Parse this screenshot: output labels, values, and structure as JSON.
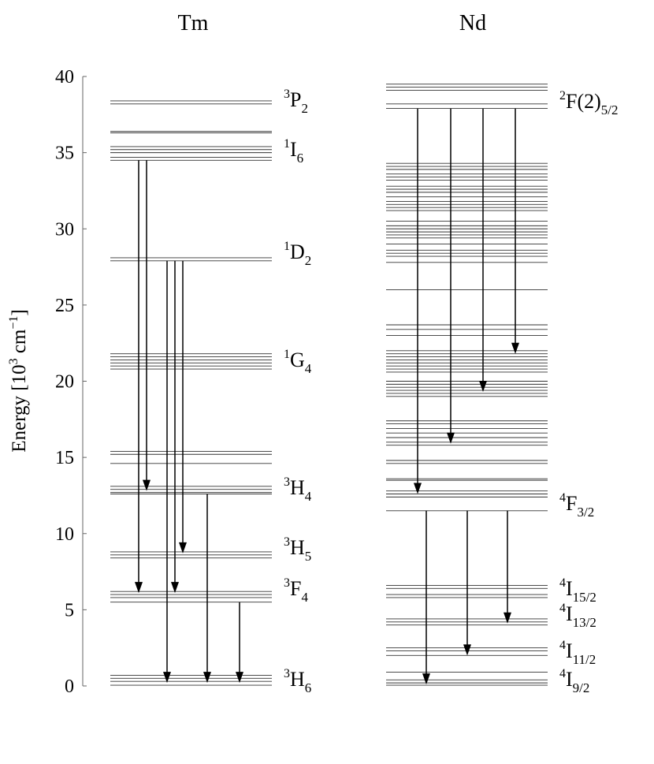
{
  "chart_data": {
    "type": "level-diagram",
    "ylabel": {
      "pre": "Energy [10",
      "sup1": "3",
      "mid": " cm",
      "sup2": "−1",
      "post": "]"
    },
    "ylim": [
      0,
      40
    ],
    "yticks": [
      0,
      5,
      10,
      15,
      20,
      25,
      30,
      35,
      40
    ],
    "color": "#333333",
    "panels": [
      {
        "title": "Tm",
        "levels": [
          38.4,
          38.2,
          36.4,
          36.3,
          35.4,
          35.2,
          35.0,
          34.7,
          34.5,
          28.1,
          27.9,
          21.8,
          21.6,
          21.4,
          21.2,
          21.0,
          20.8,
          15.4,
          15.2,
          14.6,
          13.1,
          12.9,
          12.7,
          12.6,
          8.8,
          8.6,
          8.4,
          6.2,
          6.0,
          5.8,
          5.5,
          0.7,
          0.5,
          0.3,
          0.05
        ],
        "transitions": [
          {
            "from": 34.5,
            "to": 6.1
          },
          {
            "from": 34.5,
            "to": 12.8
          },
          {
            "from": 27.9,
            "to": 0.2
          },
          {
            "from": 27.9,
            "to": 6.1
          },
          {
            "from": 27.9,
            "to": 8.7
          },
          {
            "from": 12.6,
            "to": 0.2
          },
          {
            "from": 5.5,
            "to": 0.2
          }
        ],
        "labels": [
          {
            "sup": "3",
            "base": "P",
            "sub": "2"
          },
          {
            "sup": "1",
            "base": "I",
            "sub": "6"
          },
          {
            "sup": "1",
            "base": "D",
            "sub": "2"
          },
          {
            "sup": "1",
            "base": "G",
            "sub": "4"
          },
          {
            "sup": "3",
            "base": "H",
            "sub": "4"
          },
          {
            "sup": "3",
            "base": "H",
            "sub": "5"
          },
          {
            "sup": "3",
            "base": "F",
            "sub": "4"
          },
          {
            "sup": "3",
            "base": "H",
            "sub": "6"
          }
        ]
      },
      {
        "title": "Nd",
        "levels": [
          39.5,
          39.3,
          39.1,
          38.2,
          37.9,
          34.3,
          34.1,
          33.9,
          33.6,
          33.4,
          33.2,
          32.8,
          32.6,
          32.4,
          32.1,
          31.8,
          31.6,
          31.4,
          31.2,
          30.5,
          30.2,
          30.0,
          29.8,
          29.6,
          29.4,
          29.0,
          28.6,
          28.4,
          28.2,
          27.8,
          26.0,
          23.7,
          23.4,
          23.0,
          22.0,
          21.8,
          21.6,
          21.4,
          21.2,
          21.0,
          20.8,
          20.6,
          20.0,
          19.8,
          19.6,
          19.4,
          19.2,
          19.0,
          17.4,
          17.2,
          16.9,
          16.6,
          16.3,
          16.0,
          15.8,
          14.8,
          14.6,
          13.6,
          13.5,
          12.8,
          12.6,
          12.4,
          11.5,
          6.6,
          6.4,
          6.0,
          5.8,
          4.4,
          4.2,
          4.0,
          2.5,
          2.3,
          2.0,
          0.9,
          0.4,
          0.2,
          0.05
        ],
        "transitions": [
          {
            "from": 37.9,
            "to": 12.6
          },
          {
            "from": 37.9,
            "to": 15.9
          },
          {
            "from": 37.9,
            "to": 19.3
          },
          {
            "from": 37.9,
            "to": 21.8
          },
          {
            "from": 11.5,
            "to": 0.1
          },
          {
            "from": 11.5,
            "to": 2.0
          },
          {
            "from": 11.5,
            "to": 4.1
          }
        ],
        "labels": [
          {
            "sup": "2",
            "base": "F(2)",
            "sub": "5/2"
          },
          {
            "sup": "4",
            "base": "F",
            "sub": "3/2"
          },
          {
            "sup": "4",
            "base": "I",
            "sub": "15/2"
          },
          {
            "sup": "4",
            "base": "I",
            "sub": "13/2"
          },
          {
            "sup": "4",
            "base": "I",
            "sub": "11/2"
          },
          {
            "sup": "4",
            "base": "I",
            "sub": "9/2"
          }
        ]
      }
    ]
  }
}
